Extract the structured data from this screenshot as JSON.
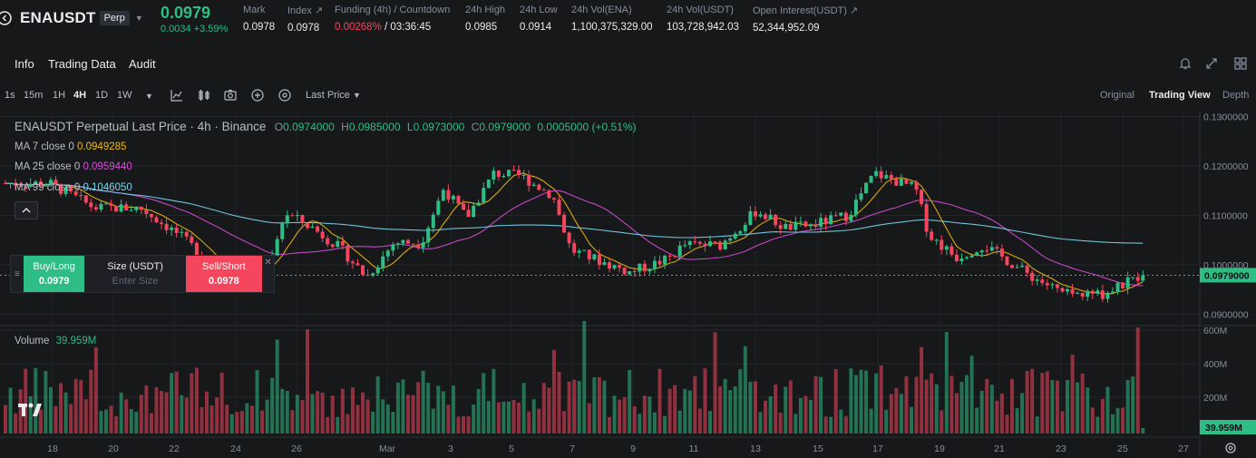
{
  "ticker": {
    "symbol": "ENAUSDT",
    "contract_type": "Perp",
    "last_price": "0.0979",
    "change": "0.0034 +3.59%",
    "stats": [
      {
        "label": "Mark",
        "value": "0.0978"
      },
      {
        "label": "Index",
        "value": "0.0978"
      },
      {
        "label": "Funding (4h) / Countdown",
        "value_red": "0.00268%",
        "value_rest": " / 03:36:45"
      },
      {
        "label": "24h High",
        "value": "0.0985"
      },
      {
        "label": "24h Low",
        "value": "0.0914"
      },
      {
        "label": "24h Vol(ENA)",
        "value": "1,100,375,329.00"
      },
      {
        "label": "24h Vol(USDT)",
        "value": "103,728,942.03"
      },
      {
        "label": "Open Interest(USDT)",
        "value": "52,344,952.09"
      }
    ]
  },
  "tabs": {
    "info": "Info",
    "trading_data": "Trading Data",
    "audit": "Audit"
  },
  "toolbar": {
    "timeframes": [
      "1s",
      "15m",
      "1H",
      "4H",
      "1D",
      "1W"
    ],
    "active_timeframe": "4H",
    "price_type": "Last Price",
    "views": [
      "Original",
      "Trading View",
      "Depth"
    ],
    "active_view": "Trading View"
  },
  "chart": {
    "legend": {
      "title": "ENAUSDT Perpetual Last Price · 4h · Binance",
      "o": "0.0974000",
      "h": "0.0985000",
      "l": "0.0973000",
      "c": "0.0979000",
      "chg": "0.0005000 (+0.51%)"
    },
    "ma": [
      {
        "label": "MA 7 close 0",
        "value": "0.0949285",
        "color": "#f0b90b"
      },
      {
        "label": "MA 25 close 0",
        "value": "0.0959440",
        "color": "#d84dd8"
      },
      {
        "label": "MA 99 close 0",
        "value": "0.1046050",
        "color": "#7ad6f0"
      }
    ],
    "volume_label": "Volume",
    "volume_value": "39.959M",
    "price_axis": [
      "0.1300000",
      "0.1200000",
      "0.1100000",
      "0.1000000",
      "0.0900000"
    ],
    "current_price": "0.0979000",
    "volume_axis": [
      "600M",
      "400M",
      "200M"
    ],
    "current_volume": "39.959M",
    "time_axis": [
      "18",
      "20",
      "22",
      "24",
      "26",
      "Mar",
      "3",
      "5",
      "7",
      "9",
      "11",
      "13",
      "15",
      "17",
      "19",
      "21",
      "23",
      "25",
      "27"
    ]
  },
  "trade_widget": {
    "buy_label": "Buy/Long",
    "buy_price": "0.0979",
    "size_label": "Size (USDT)",
    "size_placeholder": "Enter Size",
    "sell_label": "Sell/Short",
    "sell_price": "0.0978"
  },
  "colors": {
    "up": "#2ebd85",
    "down": "#f6465d",
    "accent": "#f0b90b"
  }
}
